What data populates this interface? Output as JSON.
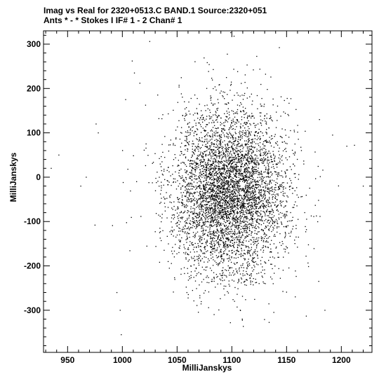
{
  "chart_data": {
    "type": "scatter",
    "title_line1": "Imag vs Real for 2320+0513.C BAND.1   Source:2320+051",
    "title_line2": "Ants * - *     Stokes I  IF# 1 - 2  Chan# 1",
    "xlabel": "MilliJanskys",
    "ylabel": "MilliJanskys",
    "xlim": [
      928,
      1228
    ],
    "ylim": [
      -395,
      330
    ],
    "x_ticks": [
      950,
      1000,
      1050,
      1100,
      1150,
      1200
    ],
    "y_ticks": [
      300,
      200,
      100,
      0,
      -100,
      -200,
      -300
    ],
    "x_minor_step": 10,
    "y_minor_step": 20,
    "grid": false,
    "point_cloud": {
      "center": [
        1098,
        -35
      ],
      "std": [
        27,
        92
      ],
      "count": 5200
    },
    "outliers": [
      [
        935,
        20
      ],
      [
        942,
        50
      ],
      [
        962,
        -20
      ],
      [
        967,
        0
      ],
      [
        975,
        -108
      ],
      [
        976,
        120
      ],
      [
        978,
        100
      ],
      [
        991,
        -109
      ],
      [
        995,
        -260
      ],
      [
        998,
        -300
      ],
      [
        999,
        -355
      ],
      [
        1003,
        175
      ],
      [
        1005,
        18
      ],
      [
        1009,
        262
      ],
      [
        1011,
        235
      ],
      [
        1013,
        -10
      ],
      [
        1016,
        212
      ],
      [
        1025,
        306
      ],
      [
        1099,
        326
      ],
      [
        1102,
        318
      ],
      [
        1185,
        -300
      ],
      [
        1205,
        70
      ],
      [
        1212,
        72
      ],
      [
        1220,
        -20
      ],
      [
        1192,
        95
      ],
      [
        1180,
        130
      ]
    ],
    "colors": {
      "points": "#000000",
      "axes": "#000000",
      "background": "#ffffff"
    }
  }
}
